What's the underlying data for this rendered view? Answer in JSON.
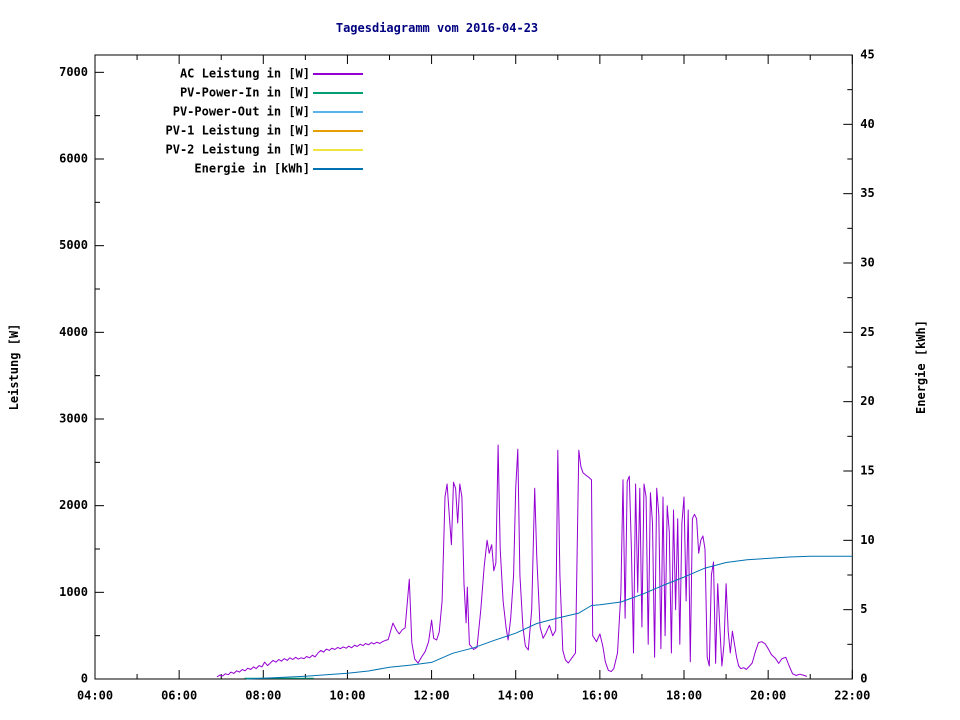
{
  "chart_data": {
    "type": "line",
    "title": "Tagesdiagramm vom 2016-04-23",
    "title_color": "#000080",
    "ylabel": "Leistung [W]",
    "y2label": "Energie [kWh]",
    "background": "#ffffff",
    "border_color": "#000000",
    "grid": false,
    "legend_position": "top-left-inside",
    "x_axis": {
      "range_hours": [
        4,
        22
      ],
      "major_tick_labels": [
        "04:00",
        "06:00",
        "08:00",
        "10:00",
        "12:00",
        "14:00",
        "16:00",
        "18:00",
        "20:00",
        "22:00"
      ],
      "major_step_hours": 2,
      "minor_step_hours": 1
    },
    "y_axis_left": {
      "label": "Leistung [W]",
      "range": [
        0,
        7200
      ],
      "major_ticks": [
        0,
        1000,
        2000,
        3000,
        4000,
        5000,
        6000,
        7000
      ],
      "minor_step": 500
    },
    "y_axis_right": {
      "label": "Energie [kWh]",
      "range": [
        0,
        45
      ],
      "major_ticks": [
        0,
        5,
        10,
        15,
        20,
        25,
        30,
        35,
        40,
        45
      ],
      "minor_step": 2.5
    },
    "series": [
      {
        "key": "ac-power",
        "name": "AC Leistung in [W]",
        "color": "#9400d3",
        "axis": "left",
        "points": [
          [
            6.9,
            25
          ],
          [
            6.97,
            45
          ],
          [
            7.03,
            35
          ],
          [
            7.1,
            60
          ],
          [
            7.17,
            50
          ],
          [
            7.23,
            80
          ],
          [
            7.3,
            65
          ],
          [
            7.37,
            95
          ],
          [
            7.43,
            80
          ],
          [
            7.5,
            110
          ],
          [
            7.57,
            95
          ],
          [
            7.63,
            125
          ],
          [
            7.7,
            110
          ],
          [
            7.77,
            140
          ],
          [
            7.83,
            120
          ],
          [
            7.9,
            155
          ],
          [
            7.97,
            140
          ],
          [
            8.03,
            195
          ],
          [
            8.1,
            155
          ],
          [
            8.17,
            185
          ],
          [
            8.23,
            215
          ],
          [
            8.3,
            195
          ],
          [
            8.37,
            225
          ],
          [
            8.43,
            205
          ],
          [
            8.5,
            235
          ],
          [
            8.57,
            215
          ],
          [
            8.63,
            245
          ],
          [
            8.7,
            225
          ],
          [
            8.77,
            250
          ],
          [
            8.83,
            230
          ],
          [
            8.9,
            245
          ],
          [
            8.97,
            235
          ],
          [
            9.03,
            260
          ],
          [
            9.1,
            245
          ],
          [
            9.17,
            275
          ],
          [
            9.23,
            255
          ],
          [
            9.3,
            300
          ],
          [
            9.37,
            330
          ],
          [
            9.43,
            310
          ],
          [
            9.5,
            345
          ],
          [
            9.57,
            330
          ],
          [
            9.63,
            355
          ],
          [
            9.7,
            340
          ],
          [
            9.77,
            365
          ],
          [
            9.83,
            350
          ],
          [
            9.9,
            370
          ],
          [
            9.97,
            355
          ],
          [
            10.03,
            380
          ],
          [
            10.1,
            360
          ],
          [
            10.17,
            390
          ],
          [
            10.23,
            375
          ],
          [
            10.3,
            400
          ],
          [
            10.37,
            385
          ],
          [
            10.43,
            410
          ],
          [
            10.5,
            395
          ],
          [
            10.57,
            420
          ],
          [
            10.63,
            405
          ],
          [
            10.7,
            425
          ],
          [
            10.77,
            410
          ],
          [
            10.83,
            430
          ],
          [
            10.9,
            445
          ],
          [
            10.97,
            455
          ],
          [
            11.08,
            645
          ],
          [
            11.17,
            560
          ],
          [
            11.23,
            520
          ],
          [
            11.3,
            565
          ],
          [
            11.37,
            590
          ],
          [
            11.47,
            1150
          ],
          [
            11.53,
            420
          ],
          [
            11.6,
            230
          ],
          [
            11.68,
            185
          ],
          [
            11.77,
            260
          ],
          [
            11.85,
            320
          ],
          [
            11.93,
            430
          ],
          [
            12.0,
            680
          ],
          [
            12.05,
            470
          ],
          [
            12.12,
            450
          ],
          [
            12.18,
            540
          ],
          [
            12.25,
            900
          ],
          [
            12.32,
            2100
          ],
          [
            12.37,
            2250
          ],
          [
            12.42,
            1900
          ],
          [
            12.47,
            1550
          ],
          [
            12.52,
            2270
          ],
          [
            12.57,
            2200
          ],
          [
            12.62,
            1800
          ],
          [
            12.67,
            2250
          ],
          [
            12.72,
            2100
          ],
          [
            12.77,
            1100
          ],
          [
            12.82,
            650
          ],
          [
            12.85,
            1060
          ],
          [
            12.9,
            400
          ],
          [
            12.95,
            370
          ],
          [
            13.0,
            340
          ],
          [
            13.08,
            365
          ],
          [
            13.17,
            800
          ],
          [
            13.25,
            1300
          ],
          [
            13.32,
            1600
          ],
          [
            13.37,
            1450
          ],
          [
            13.43,
            1550
          ],
          [
            13.48,
            1250
          ],
          [
            13.53,
            1340
          ],
          [
            13.58,
            2700
          ],
          [
            13.63,
            1500
          ],
          [
            13.7,
            900
          ],
          [
            13.77,
            600
          ],
          [
            13.82,
            450
          ],
          [
            13.88,
            700
          ],
          [
            13.95,
            1200
          ],
          [
            14.0,
            2200
          ],
          [
            14.05,
            2650
          ],
          [
            14.1,
            1200
          ],
          [
            14.17,
            600
          ],
          [
            14.23,
            380
          ],
          [
            14.3,
            335
          ],
          [
            14.38,
            800
          ],
          [
            14.45,
            2200
          ],
          [
            14.5,
            1400
          ],
          [
            14.58,
            600
          ],
          [
            14.65,
            470
          ],
          [
            14.72,
            530
          ],
          [
            14.8,
            620
          ],
          [
            14.88,
            500
          ],
          [
            14.95,
            560
          ],
          [
            15.0,
            2640
          ],
          [
            15.05,
            1200
          ],
          [
            15.12,
            330
          ],
          [
            15.18,
            220
          ],
          [
            15.25,
            185
          ],
          [
            15.33,
            240
          ],
          [
            15.42,
            300
          ],
          [
            15.5,
            2640
          ],
          [
            15.55,
            2450
          ],
          [
            15.6,
            2380
          ],
          [
            15.67,
            2350
          ],
          [
            15.73,
            2330
          ],
          [
            15.8,
            2300
          ],
          [
            15.83,
            500
          ],
          [
            15.92,
            430
          ],
          [
            16.0,
            520
          ],
          [
            16.07,
            380
          ],
          [
            16.13,
            200
          ],
          [
            16.2,
            100
          ],
          [
            16.27,
            85
          ],
          [
            16.33,
            120
          ],
          [
            16.42,
            300
          ],
          [
            16.5,
            1000
          ],
          [
            16.55,
            2300
          ],
          [
            16.6,
            700
          ],
          [
            16.65,
            2280
          ],
          [
            16.7,
            2340
          ],
          [
            16.75,
            1500
          ],
          [
            16.8,
            300
          ],
          [
            16.85,
            2250
          ],
          [
            16.9,
            1000
          ],
          [
            16.95,
            2200
          ],
          [
            17.0,
            600
          ],
          [
            17.05,
            2250
          ],
          [
            17.1,
            2100
          ],
          [
            17.15,
            400
          ],
          [
            17.2,
            2150
          ],
          [
            17.25,
            1800
          ],
          [
            17.3,
            250
          ],
          [
            17.35,
            2200
          ],
          [
            17.4,
            1900
          ],
          [
            17.45,
            350
          ],
          [
            17.5,
            2100
          ],
          [
            17.55,
            500
          ],
          [
            17.6,
            2000
          ],
          [
            17.65,
            1700
          ],
          [
            17.7,
            300
          ],
          [
            17.75,
            1950
          ],
          [
            17.8,
            800
          ],
          [
            17.85,
            1850
          ],
          [
            17.9,
            400
          ],
          [
            17.95,
            1800
          ],
          [
            18.0,
            2100
          ],
          [
            18.05,
            900
          ],
          [
            18.1,
            1950
          ],
          [
            18.15,
            200
          ],
          [
            18.2,
            1850
          ],
          [
            18.25,
            1900
          ],
          [
            18.3,
            1850
          ],
          [
            18.35,
            1450
          ],
          [
            18.4,
            1600
          ],
          [
            18.45,
            1650
          ],
          [
            18.5,
            1500
          ],
          [
            18.55,
            250
          ],
          [
            18.6,
            150
          ],
          [
            18.65,
            1200
          ],
          [
            18.7,
            1350
          ],
          [
            18.75,
            180
          ],
          [
            18.8,
            1100
          ],
          [
            18.85,
            600
          ],
          [
            18.9,
            150
          ],
          [
            18.95,
            400
          ],
          [
            19.0,
            1100
          ],
          [
            19.05,
            550
          ],
          [
            19.1,
            300
          ],
          [
            19.15,
            550
          ],
          [
            19.2,
            400
          ],
          [
            19.25,
            250
          ],
          [
            19.3,
            150
          ],
          [
            19.35,
            120
          ],
          [
            19.42,
            130
          ],
          [
            19.48,
            110
          ],
          [
            19.55,
            145
          ],
          [
            19.62,
            185
          ],
          [
            19.7,
            320
          ],
          [
            19.77,
            420
          ],
          [
            19.85,
            430
          ],
          [
            19.93,
            405
          ],
          [
            20.0,
            350
          ],
          [
            20.08,
            280
          ],
          [
            20.17,
            240
          ],
          [
            20.25,
            180
          ],
          [
            20.33,
            235
          ],
          [
            20.42,
            250
          ],
          [
            20.5,
            150
          ],
          [
            20.58,
            60
          ],
          [
            20.67,
            40
          ],
          [
            20.75,
            55
          ],
          [
            20.83,
            45
          ],
          [
            20.92,
            30
          ]
        ]
      },
      {
        "key": "pv-power-in",
        "name": "PV-Power-In in [W]",
        "color": "#009e73",
        "axis": "left",
        "points": [
          [
            7.55,
            8
          ],
          [
            8.0,
            8
          ],
          [
            8.5,
            8
          ],
          [
            9.0,
            8
          ],
          [
            9.2,
            8
          ]
        ]
      },
      {
        "key": "pv-power-out",
        "name": "PV-Power-Out in [W]",
        "color": "#56b4e9",
        "axis": "left",
        "points": []
      },
      {
        "key": "pv1-power",
        "name": "PV-1 Leistung in [W]",
        "color": "#e69f00",
        "axis": "left",
        "points": []
      },
      {
        "key": "pv2-power",
        "name": "PV-2 Leistung in [W]",
        "color": "#f0e442",
        "axis": "left",
        "points": []
      },
      {
        "key": "energie",
        "name": "Energie in [kWh]",
        "color": "#0072b2",
        "axis": "right",
        "points": [
          [
            7.6,
            0
          ],
          [
            8.0,
            0.05
          ],
          [
            8.5,
            0.12
          ],
          [
            9.0,
            0.2
          ],
          [
            9.5,
            0.3
          ],
          [
            10.0,
            0.42
          ],
          [
            10.5,
            0.58
          ],
          [
            11.0,
            0.85
          ],
          [
            11.5,
            1.0
          ],
          [
            12.0,
            1.2
          ],
          [
            12.5,
            1.85
          ],
          [
            13.0,
            2.25
          ],
          [
            13.5,
            2.8
          ],
          [
            14.0,
            3.3
          ],
          [
            14.5,
            4.0
          ],
          [
            15.0,
            4.4
          ],
          [
            15.5,
            4.75
          ],
          [
            15.8,
            5.3
          ],
          [
            16.0,
            5.35
          ],
          [
            16.5,
            5.55
          ],
          [
            17.0,
            6.1
          ],
          [
            17.5,
            6.75
          ],
          [
            18.0,
            7.35
          ],
          [
            18.5,
            8.0
          ],
          [
            19.0,
            8.4
          ],
          [
            19.5,
            8.6
          ],
          [
            20.0,
            8.7
          ],
          [
            20.5,
            8.8
          ],
          [
            21.0,
            8.85
          ],
          [
            22.0,
            8.85
          ]
        ]
      }
    ]
  }
}
